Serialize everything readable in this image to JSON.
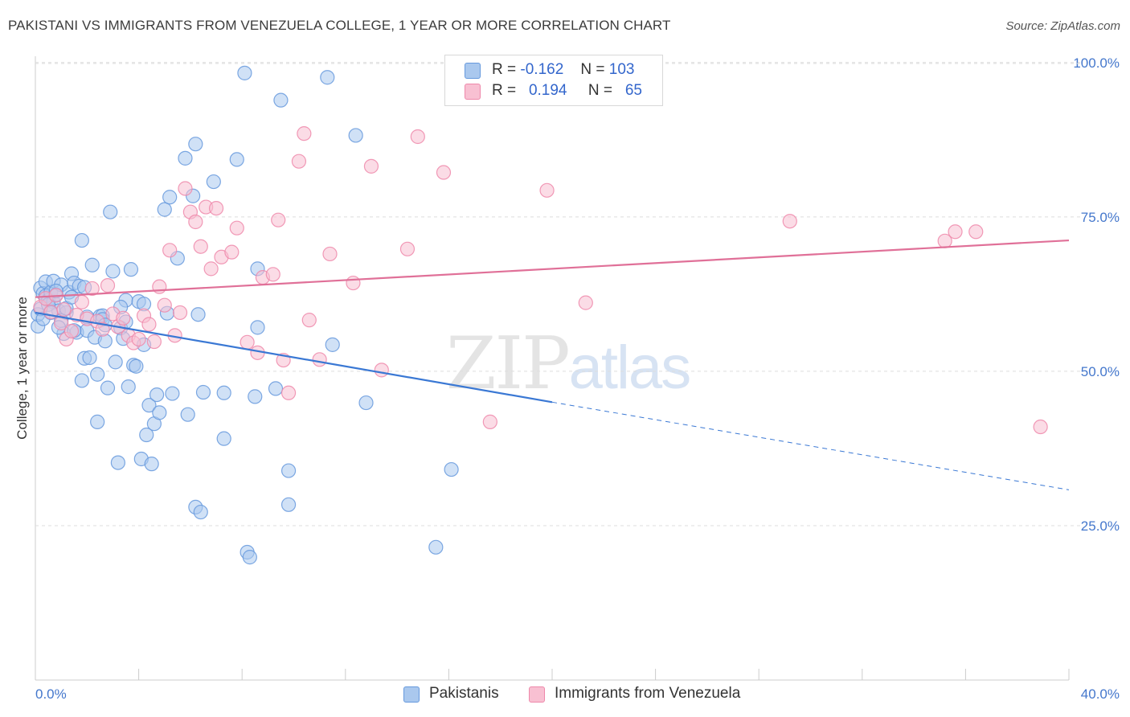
{
  "title": "PAKISTANI VS IMMIGRANTS FROM VENEZUELA COLLEGE, 1 YEAR OR MORE CORRELATION CHART",
  "source": "Source: ZipAtlas.com",
  "watermark": {
    "zip": "ZIP",
    "atlas": "atlas"
  },
  "legend_top": [
    {
      "r_label": "R =",
      "r_value": "-0.162",
      "n_label": "N =",
      "n_value": "103",
      "color": "#aac8ee",
      "border": "#6699dd"
    },
    {
      "r_label": "R =",
      "r_value": "0.194",
      "n_label": "N =",
      "n_value": "65",
      "color": "#f8c0d2",
      "border": "#ee88aa"
    }
  ],
  "chart_data": {
    "type": "scatter",
    "title": "PAKISTANI VS IMMIGRANTS FROM VENEZUELA COLLEGE, 1 YEAR OR MORE CORRELATION CHART",
    "xlabel": "",
    "ylabel": "College, 1 year or more",
    "xlim": [
      0,
      40
    ],
    "ylim": [
      0,
      105
    ],
    "x_ticks": [
      "0.0%",
      "40.0%"
    ],
    "y_ticks": [
      "25.0%",
      "50.0%",
      "75.0%",
      "100.0%"
    ],
    "y_tick_values": [
      25,
      50,
      75,
      100
    ],
    "grid": true,
    "legend_position": "bottom",
    "series": [
      {
        "name": "Pakistanis",
        "color": "#6699dd",
        "fill": "#aac8ee",
        "trend": {
          "x0": 0,
          "y0": 59.5,
          "x1": 20,
          "y1": 45.0,
          "dashed_to_x": 40,
          "dashed_to_y": 30.8
        },
        "points": [
          [
            0.1,
            57.3
          ],
          [
            0.1,
            59.2
          ],
          [
            0.2,
            63.5
          ],
          [
            0.3,
            62.6
          ],
          [
            0.4,
            64.5
          ],
          [
            0.4,
            62.2
          ],
          [
            0.5,
            61.5
          ],
          [
            0.6,
            62.8
          ],
          [
            0.7,
            64.6
          ],
          [
            0.7,
            61.2
          ],
          [
            0.8,
            62.4
          ],
          [
            0.9,
            59.8
          ],
          [
            1.0,
            64.0
          ],
          [
            1.1,
            56.1
          ],
          [
            1.2,
            59.5
          ],
          [
            1.3,
            62.8
          ],
          [
            1.4,
            65.8
          ],
          [
            1.5,
            64.3
          ],
          [
            1.6,
            56.3
          ],
          [
            1.7,
            63.8
          ],
          [
            1.8,
            48.5
          ],
          [
            1.8,
            71.2
          ],
          [
            1.9,
            52.1
          ],
          [
            2.0,
            56.6
          ],
          [
            2.1,
            52.2
          ],
          [
            2.2,
            67.2
          ],
          [
            2.3,
            55.5
          ],
          [
            2.4,
            49.5
          ],
          [
            2.4,
            41.8
          ],
          [
            2.5,
            58.9
          ],
          [
            2.6,
            59.0
          ],
          [
            2.7,
            54.9
          ],
          [
            2.8,
            47.3
          ],
          [
            2.9,
            75.8
          ],
          [
            3.0,
            66.2
          ],
          [
            3.1,
            51.5
          ],
          [
            3.2,
            35.2
          ],
          [
            3.3,
            57.0
          ],
          [
            3.4,
            55.3
          ],
          [
            3.5,
            61.5
          ],
          [
            3.6,
            47.5
          ],
          [
            3.7,
            66.5
          ],
          [
            3.8,
            51.0
          ],
          [
            3.9,
            50.8
          ],
          [
            4.0,
            61.3
          ],
          [
            4.1,
            35.8
          ],
          [
            4.2,
            54.3
          ],
          [
            4.3,
            39.7
          ],
          [
            4.4,
            44.5
          ],
          [
            4.5,
            35.0
          ],
          [
            4.6,
            41.5
          ],
          [
            4.7,
            46.2
          ],
          [
            4.8,
            43.3
          ],
          [
            5.0,
            76.2
          ],
          [
            5.1,
            59.4
          ],
          [
            5.2,
            78.2
          ],
          [
            5.3,
            46.4
          ],
          [
            5.5,
            68.3
          ],
          [
            5.8,
            84.5
          ],
          [
            5.9,
            43.0
          ],
          [
            6.1,
            78.4
          ],
          [
            6.2,
            86.8
          ],
          [
            6.2,
            28.0
          ],
          [
            6.3,
            59.2
          ],
          [
            6.4,
            27.2
          ],
          [
            6.5,
            46.6
          ],
          [
            6.9,
            80.7
          ],
          [
            7.3,
            46.5
          ],
          [
            7.3,
            39.1
          ],
          [
            7.8,
            84.3
          ],
          [
            8.1,
            98.3
          ],
          [
            8.2,
            20.7
          ],
          [
            8.3,
            19.9
          ],
          [
            8.5,
            45.9
          ],
          [
            8.6,
            57.1
          ],
          [
            8.6,
            66.6
          ],
          [
            9.3,
            47.2
          ],
          [
            9.5,
            93.9
          ],
          [
            9.8,
            33.9
          ],
          [
            9.8,
            28.4
          ],
          [
            11.3,
            97.6
          ],
          [
            11.5,
            54.3
          ],
          [
            12.4,
            88.2
          ],
          [
            12.8,
            44.9
          ],
          [
            15.5,
            21.5
          ],
          [
            16.1,
            34.1
          ],
          [
            0.2,
            60.1
          ],
          [
            0.5,
            60.8
          ],
          [
            1.0,
            58.2
          ],
          [
            1.5,
            56.6
          ],
          [
            2.0,
            58.8
          ],
          [
            2.6,
            58.4
          ],
          [
            3.3,
            60.4
          ],
          [
            0.3,
            58.5
          ],
          [
            0.8,
            63.0
          ],
          [
            1.2,
            60.2
          ],
          [
            1.9,
            63.6
          ],
          [
            2.7,
            57.5
          ],
          [
            3.5,
            58.0
          ],
          [
            4.2,
            60.9
          ],
          [
            0.6,
            59.5
          ],
          [
            1.4,
            62.0
          ],
          [
            0.9,
            57.1
          ]
        ]
      },
      {
        "name": "Immigrants from Venezuela",
        "color": "#ee88aa",
        "fill": "#f8c0d2",
        "trend": {
          "x0": 0,
          "y0": 62.0,
          "x1": 40,
          "y1": 71.2
        },
        "points": [
          [
            0.2,
            60.4
          ],
          [
            0.4,
            61.8
          ],
          [
            0.6,
            59.6
          ],
          [
            0.8,
            62.3
          ],
          [
            1.0,
            57.8
          ],
          [
            1.2,
            55.2
          ],
          [
            1.4,
            56.5
          ],
          [
            1.6,
            59.1
          ],
          [
            1.8,
            61.2
          ],
          [
            2.0,
            58.5
          ],
          [
            2.2,
            63.4
          ],
          [
            2.4,
            58.1
          ],
          [
            2.6,
            56.8
          ],
          [
            2.8,
            63.9
          ],
          [
            3.0,
            59.3
          ],
          [
            3.2,
            57.2
          ],
          [
            3.4,
            58.6
          ],
          [
            3.6,
            55.8
          ],
          [
            3.8,
            54.6
          ],
          [
            4.0,
            55.2
          ],
          [
            4.2,
            59.0
          ],
          [
            4.4,
            57.6
          ],
          [
            4.6,
            54.8
          ],
          [
            4.8,
            63.7
          ],
          [
            5.0,
            60.7
          ],
          [
            5.2,
            69.6
          ],
          [
            5.4,
            55.8
          ],
          [
            5.6,
            59.5
          ],
          [
            5.8,
            79.6
          ],
          [
            6.0,
            75.8
          ],
          [
            6.2,
            74.2
          ],
          [
            6.4,
            70.2
          ],
          [
            6.6,
            76.6
          ],
          [
            6.8,
            66.6
          ],
          [
            7.0,
            76.4
          ],
          [
            7.2,
            68.5
          ],
          [
            7.6,
            69.3
          ],
          [
            7.8,
            73.2
          ],
          [
            8.2,
            54.7
          ],
          [
            8.6,
            53.0
          ],
          [
            8.8,
            65.2
          ],
          [
            9.2,
            65.7
          ],
          [
            9.4,
            74.5
          ],
          [
            9.6,
            51.8
          ],
          [
            9.8,
            46.5
          ],
          [
            10.2,
            84.0
          ],
          [
            10.4,
            88.5
          ],
          [
            10.6,
            58.3
          ],
          [
            11.0,
            51.9
          ],
          [
            11.4,
            69.0
          ],
          [
            12.3,
            64.3
          ],
          [
            13.0,
            83.2
          ],
          [
            13.4,
            50.2
          ],
          [
            14.4,
            69.8
          ],
          [
            14.8,
            88.0
          ],
          [
            15.8,
            82.2
          ],
          [
            17.6,
            41.8
          ],
          [
            19.8,
            79.3
          ],
          [
            21.3,
            61.1
          ],
          [
            29.2,
            74.3
          ],
          [
            35.2,
            71.1
          ],
          [
            35.6,
            72.6
          ],
          [
            36.4,
            72.6
          ],
          [
            38.9,
            41.0
          ],
          [
            1.1,
            60.0
          ]
        ]
      }
    ]
  }
}
